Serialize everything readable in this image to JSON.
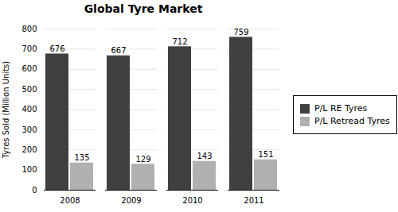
{
  "chart_data": {
    "type": "bar",
    "title": "Global Tyre Market",
    "ylabel": "Tyres Sold (Million Units)",
    "categories": [
      "2008",
      "2009",
      "2010",
      "2011"
    ],
    "series": [
      {
        "name": "P/L RE Tyres",
        "color": "#404040",
        "values": [
          676,
          667,
          712,
          759
        ]
      },
      {
        "name": "P/L Retread Tyres",
        "color": "#b0b0b0",
        "values": [
          135,
          129,
          143,
          151
        ]
      }
    ],
    "ylim": [
      0,
      800
    ],
    "yticks": [
      0,
      100,
      200,
      300,
      400,
      500,
      600,
      700,
      800
    ],
    "grid": true,
    "data_labels": true,
    "legend": "right"
  }
}
